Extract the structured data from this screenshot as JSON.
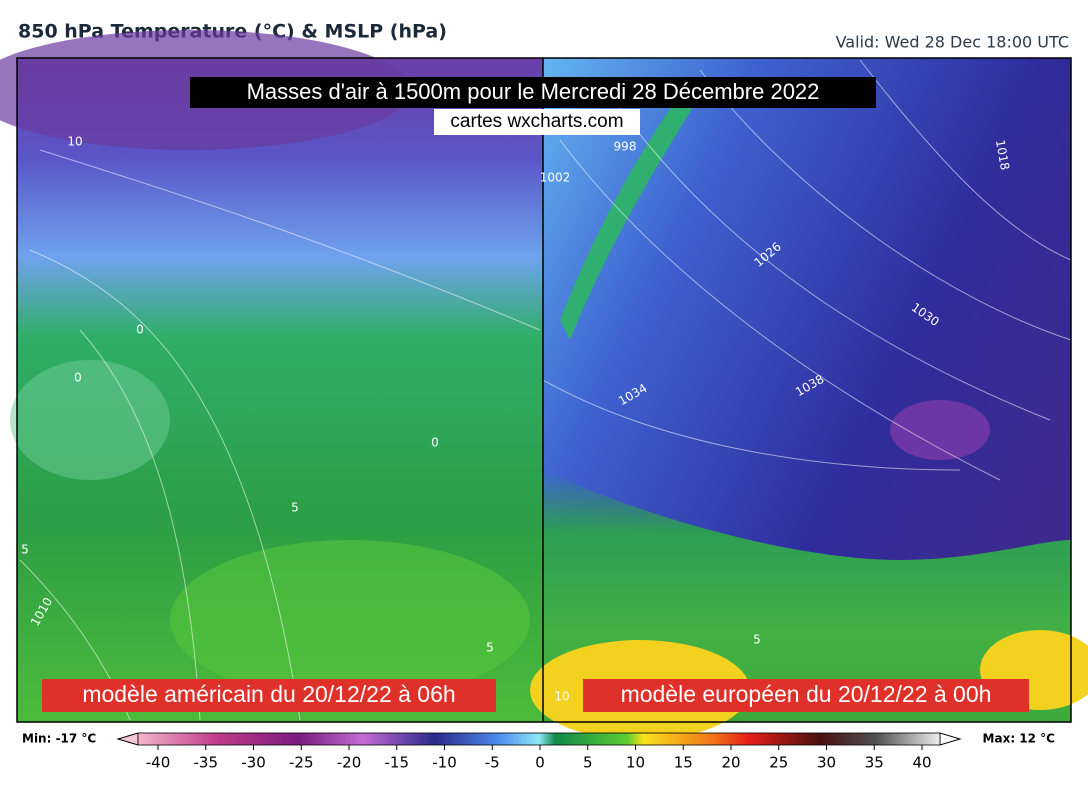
{
  "header": {
    "title": "850 hPa Temperature (°C) & MSLP (hPa)",
    "valid": "Valid: Wed 28 Dec 18:00 UTC"
  },
  "overlay": {
    "title": "Masses d'air à 1500m pour le Mercredi 28 Décembre 2022",
    "credit": "cartes wxcharts.com"
  },
  "panels": [
    {
      "caption": "modèle américain du 20/12/22 à 06h",
      "contour_labels": [
        "10",
        "0",
        "0",
        "0",
        "5",
        "5",
        "1010",
        "5"
      ]
    },
    {
      "caption": "modèle européen du 20/12/22 à 00h",
      "contour_labels": [
        "998",
        "1002",
        "1026",
        "1030",
        "1034",
        "1038",
        "1018",
        "10",
        "5"
      ]
    }
  ],
  "colorbar": {
    "min_label": "Min: -17 °C",
    "max_label": "Max: 12 °C",
    "range": [
      -40,
      40
    ],
    "ticks": [
      -40,
      -35,
      -30,
      -25,
      -20,
      -15,
      -10,
      -5,
      0,
      5,
      10,
      15,
      20,
      25,
      30,
      35,
      40
    ]
  }
}
